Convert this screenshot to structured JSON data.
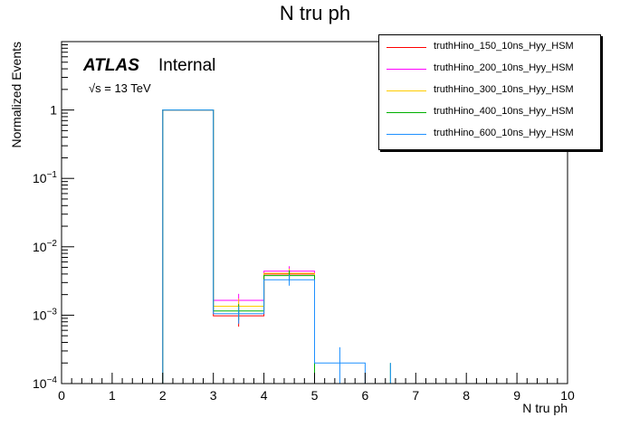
{
  "chart_data": {
    "type": "histogram",
    "title": "N tru ph",
    "xlabel": "N tru ph",
    "ylabel": "Normalized Events",
    "xlim": [
      0,
      10
    ],
    "ylim": [
      0.0001,
      10
    ],
    "yscale": "log",
    "bin_edges": [
      0,
      1,
      2,
      3,
      4,
      5,
      6,
      7,
      8,
      9,
      10
    ],
    "x_tick_labels": [
      "0",
      "1",
      "2",
      "3",
      "4",
      "5",
      "6",
      "7",
      "8",
      "9",
      "10"
    ],
    "y_tick_labels": [
      {
        "value": 0.0001,
        "base": "10",
        "exp": "−4"
      },
      {
        "value": 0.001,
        "base": "10",
        "exp": "−3"
      },
      {
        "value": 0.01,
        "base": "10",
        "exp": "−2"
      },
      {
        "value": 0.1,
        "base": "10",
        "exp": "−1"
      },
      {
        "value": 1,
        "base": "1",
        "exp": ""
      }
    ],
    "series": [
      {
        "name": "truthHino_150_10ns_Hyy_HSM",
        "color": "#ff0000",
        "values": [
          0,
          0,
          1.0,
          0.00098,
          0.004,
          0,
          0,
          0,
          0,
          0
        ],
        "errors": [
          0,
          0,
          0.01,
          0.0003,
          0.0007,
          0,
          0,
          0,
          0,
          0
        ]
      },
      {
        "name": "truthHino_200_10ns_Hyy_HSM",
        "color": "#ff00ff",
        "values": [
          0,
          0,
          1.0,
          0.00165,
          0.0044,
          0,
          0,
          0,
          0,
          0
        ],
        "errors": [
          0,
          0,
          0.01,
          0.0004,
          0.0008,
          0,
          0,
          0,
          0,
          0
        ]
      },
      {
        "name": "truthHino_300_10ns_Hyy_HSM",
        "color": "#ffcc00",
        "values": [
          0,
          0,
          1.0,
          0.00135,
          0.0041,
          0,
          0,
          0,
          0,
          0
        ],
        "errors": [
          0,
          0,
          0.01,
          0.0004,
          0.0007,
          0,
          0,
          0,
          0,
          0
        ]
      },
      {
        "name": "truthHino_400_10ns_Hyy_HSM",
        "color": "#00b000",
        "values": [
          0,
          0,
          1.0,
          0.00115,
          0.0038,
          0,
          0.0001,
          0,
          0,
          0
        ],
        "errors": [
          0,
          0,
          0.01,
          0.0003,
          0.0007,
          0,
          0.0001,
          0,
          0,
          0
        ]
      },
      {
        "name": "truthHino_600_10ns_Hyy_HSM",
        "color": "#1e90ff",
        "values": [
          0,
          0,
          1.0,
          0.00105,
          0.0033,
          0.0002,
          0.0001,
          0,
          0,
          0
        ],
        "errors": [
          0,
          0,
          0.01,
          0.0003,
          0.0006,
          0.00014,
          0.0001,
          0,
          0,
          0
        ]
      }
    ]
  },
  "annotations": {
    "experiment": "ATLAS",
    "status": "Internal",
    "energy": "√s = 13 TeV"
  }
}
